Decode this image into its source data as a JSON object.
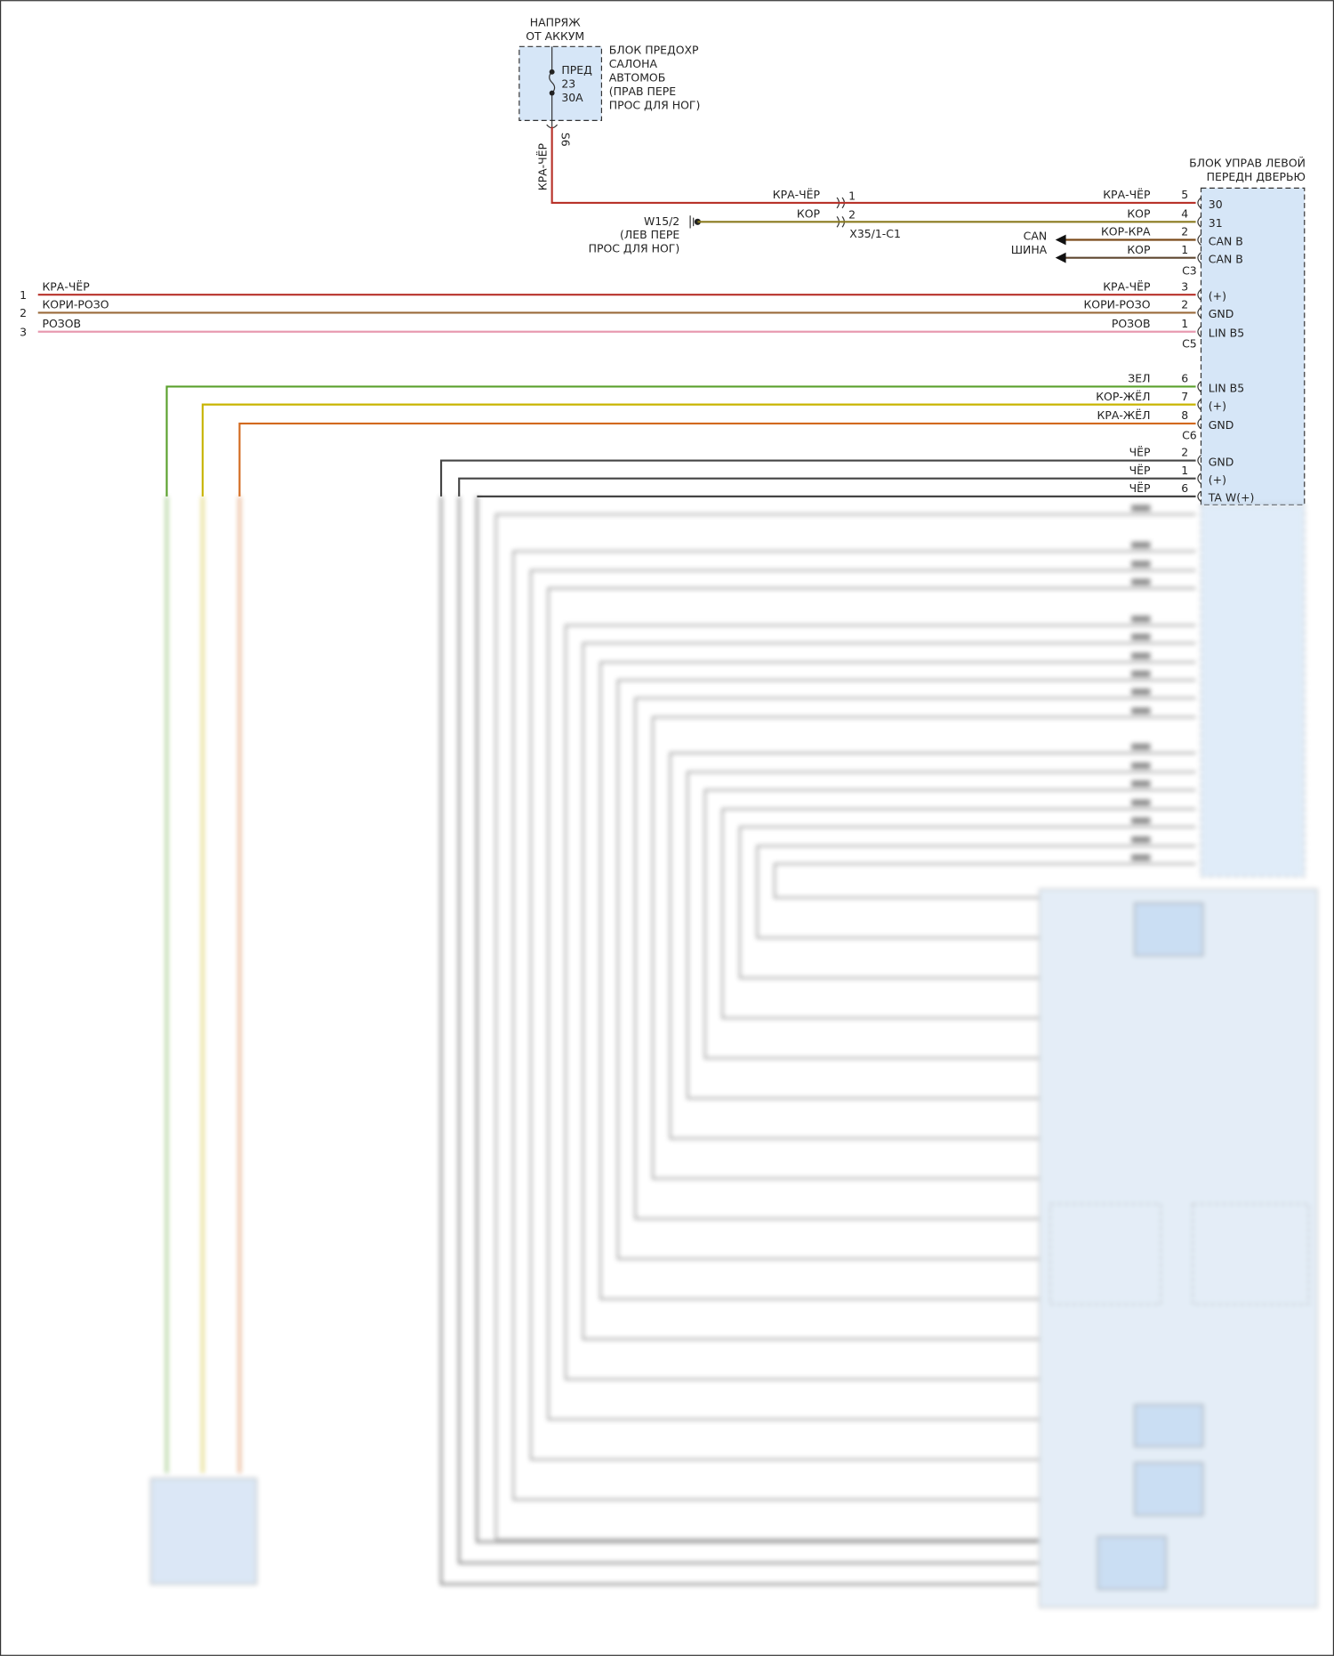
{
  "source": {
    "lines": [
      "НАПРЯЖ",
      "ОТ АККУМ"
    ]
  },
  "fuse": {
    "lines": [
      "ПРЕД",
      "23",
      "30А"
    ],
    "block": [
      "БЛОК ПРЕДОХР",
      "САЛОНА",
      "АВТОМОБ",
      "(ПРАВ ПЕРЕ",
      "ПРОС ДЛЯ НОГ)"
    ],
    "splice": "S6",
    "wire": "КРА-ЧЁР"
  },
  "ground": {
    "lines": [
      "W15/2",
      "(ЛЕВ ПЕРЕ",
      "ПРОС ДЛЯ НОГ)"
    ]
  },
  "connector": {
    "name": "X35/1-C1",
    "pins": [
      "1",
      "2"
    ],
    "wires": [
      "КРА-ЧЁР",
      "КОР"
    ]
  },
  "can": {
    "lines": [
      "CAN",
      "ШИНА"
    ]
  },
  "module": {
    "title": [
      "БЛОК УПРАВ ЛЕВОЙ",
      "ПЕРЕДН ДВЕРЬЮ"
    ],
    "connectors": [
      "C3",
      "C5",
      "C6"
    ],
    "wires": [
      {
        "label": "КРА-ЧЁР",
        "pin": "5",
        "signal": "30"
      },
      {
        "label": "КОР",
        "pin": "4",
        "signal": "31"
      },
      {
        "label": "КОР-КРА",
        "pin": "2",
        "signal": "CAN B"
      },
      {
        "label": "КОР",
        "pin": "1",
        "signal": "CAN B"
      },
      {
        "label": "КРА-ЧЁР",
        "pin": "3",
        "signal": "(+)",
        "left_pin": "1",
        "left_label": "КРА-ЧЁР"
      },
      {
        "label": "КОРИ-РОЗО",
        "pin": "2",
        "signal": "GND",
        "left_pin": "2",
        "left_label": "КОРИ-РОЗО"
      },
      {
        "label": "РОЗОВ",
        "pin": "1",
        "signal": "LIN B5",
        "left_pin": "3",
        "left_label": "РОЗОВ"
      },
      {
        "label": "ЗЕЛ",
        "pin": "6",
        "signal": "LIN B5"
      },
      {
        "label": "КОР-ЖЁЛ",
        "pin": "7",
        "signal": "(+)"
      },
      {
        "label": "КРА-ЖЁЛ",
        "pin": "8",
        "signal": "GND"
      },
      {
        "label": "ЧЁР",
        "pin": "2",
        "signal": "GND"
      },
      {
        "label": "ЧЁР",
        "pin": "1",
        "signal": "(+)"
      },
      {
        "label": "ЧЁР",
        "pin": "6",
        "signal": "TA W(+)"
      }
    ]
  }
}
